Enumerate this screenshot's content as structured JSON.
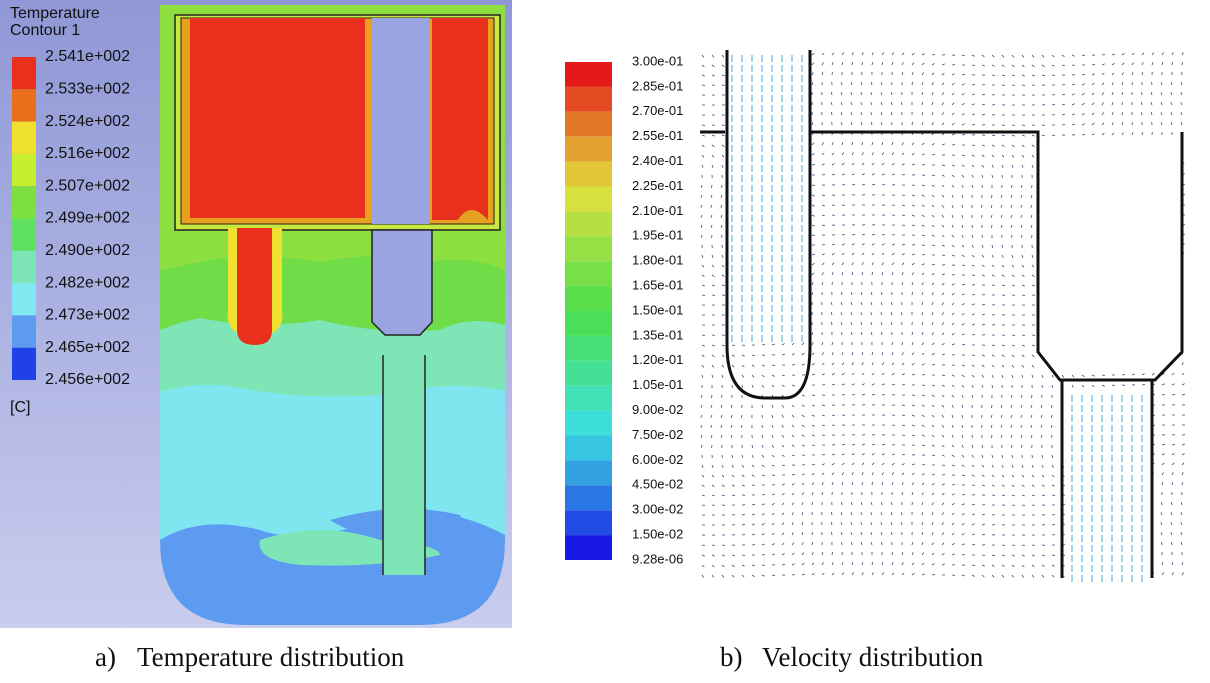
{
  "panels": [
    {
      "legend_title": [
        "Temperature",
        "Contour 1"
      ],
      "legend_labels": [
        "2.541e+002",
        "2.533e+002",
        "2.524e+002",
        "2.516e+002",
        "2.507e+002",
        "2.499e+002",
        "2.490e+002",
        "2.482e+002",
        "2.473e+002",
        "2.465e+002",
        "2.456e+002"
      ],
      "unit": "[C]",
      "caption_marker": "a)",
      "caption": "Temperature distribution"
    },
    {
      "legend_labels": [
        "3.00e-01",
        "2.85e-01",
        "2.70e-01",
        "2.55e-01",
        "2.40e-01",
        "2.25e-01",
        "2.10e-01",
        "1.95e-01",
        "1.80e-01",
        "1.65e-01",
        "1.50e-01",
        "1.35e-01",
        "1.20e-01",
        "1.05e-01",
        "9.00e-02",
        "7.50e-02",
        "6.00e-02",
        "4.50e-02",
        "3.00e-02",
        "1.50e-02",
        "9.28e-06"
      ],
      "caption_marker": "b)",
      "caption": "Velocity distribution"
    }
  ]
}
